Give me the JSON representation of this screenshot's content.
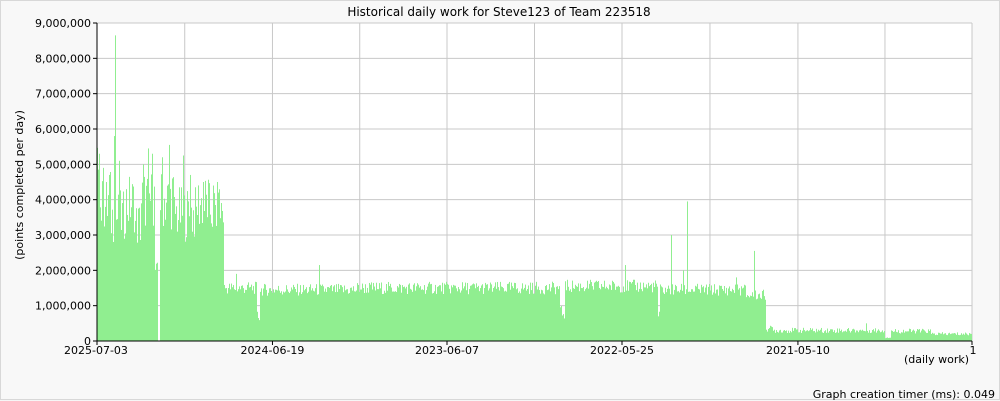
{
  "chart_data": {
    "type": "bar",
    "title": "Historical daily work for Steve123 of Team 223518",
    "ylabel": "(points completed per day)",
    "xlabel": "(daily work)",
    "ylim": [
      0,
      9000000
    ],
    "y_ticks": [
      0,
      1000000,
      2000000,
      3000000,
      4000000,
      5000000,
      6000000,
      7000000,
      8000000,
      9000000
    ],
    "y_tick_labels": [
      "0",
      "1,000,000",
      "2,000,000",
      "3,000,000",
      "4,000,000",
      "5,000,000",
      "6,000,000",
      "7,000,000",
      "8,000,000",
      "9,000,000"
    ],
    "x_ticks": [
      {
        "label": "2025-07-03",
        "day_index": 0
      },
      {
        "label": "2024-06-19",
        "day_index": 379
      },
      {
        "label": "2023-06-07",
        "day_index": 756
      },
      {
        "label": "2022-05-25",
        "day_index": 1134
      },
      {
        "label": "2021-05-10",
        "day_index": 1514
      },
      {
        "label": "1",
        "day_index": 1890
      }
    ],
    "grid": true,
    "bar_color": "#90ee90",
    "segments": [
      {
        "day_start": 0,
        "day_end": 5,
        "value": 4600000
      },
      {
        "day_start": 5,
        "day_end": 22,
        "value": 3800000
      },
      {
        "day_start": 22,
        "day_end": 30,
        "value": 4000000
      },
      {
        "day_start": 30,
        "day_end": 60,
        "value": 3500000
      },
      {
        "day_start": 60,
        "day_end": 80,
        "value": 3900000
      },
      {
        "day_start": 80,
        "day_end": 95,
        "value": 3300000
      },
      {
        "day_start": 95,
        "day_end": 124,
        "value": 4000000
      },
      {
        "day_start": 124,
        "day_end": 130,
        "value": 2000000
      },
      {
        "day_start": 135,
        "day_end": 165,
        "value": 4000000
      },
      {
        "day_start": 165,
        "day_end": 215,
        "value": 3600000
      },
      {
        "day_start": 215,
        "day_end": 240,
        "value": 3900000
      },
      {
        "day_start": 240,
        "day_end": 273,
        "value": 3700000
      },
      {
        "day_start": 273,
        "day_end": 345,
        "value": 1500000
      },
      {
        "day_start": 345,
        "day_end": 350,
        "value": 700000
      },
      {
        "day_start": 350,
        "day_end": 560,
        "value": 1450000
      },
      {
        "day_start": 560,
        "day_end": 830,
        "value": 1500000
      },
      {
        "day_start": 830,
        "day_end": 1000,
        "value": 1500000
      },
      {
        "day_start": 1000,
        "day_end": 1010,
        "value": 800000
      },
      {
        "day_start": 1010,
        "day_end": 1210,
        "value": 1550000
      },
      {
        "day_start": 1210,
        "day_end": 1215,
        "value": 700000
      },
      {
        "day_start": 1215,
        "day_end": 1400,
        "value": 1450000
      },
      {
        "day_start": 1400,
        "day_end": 1445,
        "value": 1300000
      },
      {
        "day_start": 1445,
        "day_end": 1460,
        "value": 350000
      },
      {
        "day_start": 1460,
        "day_end": 1700,
        "value": 300000
      },
      {
        "day_start": 1700,
        "day_end": 1715,
        "value": 100000
      },
      {
        "day_start": 1715,
        "day_end": 1800,
        "value": 280000
      },
      {
        "day_start": 1800,
        "day_end": 1890,
        "value": 200000
      }
    ],
    "spikes": [
      {
        "day": 2,
        "value": 4850000
      },
      {
        "day": 4,
        "value": 5300000
      },
      {
        "day": 12,
        "value": 4900000
      },
      {
        "day": 20,
        "value": 4500000
      },
      {
        "day": 25,
        "value": 4700000
      },
      {
        "day": 38,
        "value": 8650000
      },
      {
        "day": 37,
        "value": 5800000
      },
      {
        "day": 48,
        "value": 5100000
      },
      {
        "day": 75,
        "value": 4300000
      },
      {
        "day": 100,
        "value": 5000000
      },
      {
        "day": 110,
        "value": 5450000
      },
      {
        "day": 118,
        "value": 5300000
      },
      {
        "day": 140,
        "value": 5200000
      },
      {
        "day": 155,
        "value": 5550000
      },
      {
        "day": 162,
        "value": 4600000
      },
      {
        "day": 185,
        "value": 5250000
      },
      {
        "day": 200,
        "value": 4700000
      },
      {
        "day": 230,
        "value": 4500000
      },
      {
        "day": 250,
        "value": 4400000
      },
      {
        "day": 262,
        "value": 4200000
      },
      {
        "day": 300,
        "value": 1900000
      },
      {
        "day": 480,
        "value": 2150000
      },
      {
        "day": 1140,
        "value": 2150000
      },
      {
        "day": 1240,
        "value": 3000000
      },
      {
        "day": 1275,
        "value": 3950000
      },
      {
        "day": 1265,
        "value": 2000000
      },
      {
        "day": 1420,
        "value": 2550000
      },
      {
        "day": 1380,
        "value": 1800000
      },
      {
        "day": 1660,
        "value": 500000
      }
    ]
  },
  "footer": {
    "timer_text": "Graph creation timer (ms): 0.049"
  }
}
